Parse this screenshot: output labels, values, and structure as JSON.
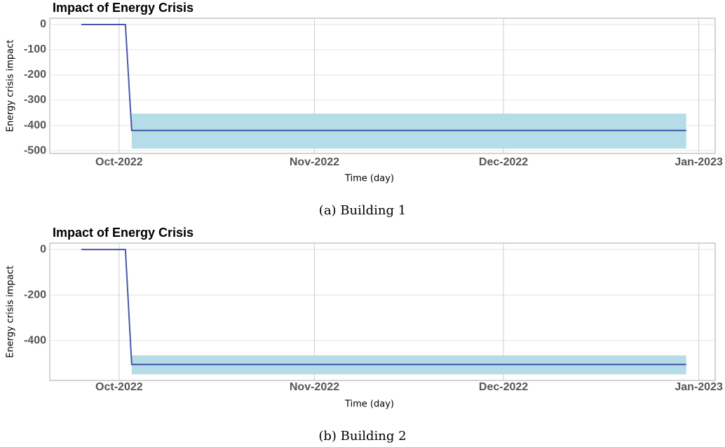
{
  "chart_data": [
    {
      "type": "line",
      "title": "Impact of Energy Crisis",
      "caption": "(a) Building 1",
      "x_label": "Time (day)",
      "y_label": "Energy crisis impact",
      "xlim": [
        263,
        368.6
      ],
      "ylim": [
        -511,
        25
      ],
      "xticks": [
        {
          "value": 274,
          "label": "Oct-2022"
        },
        {
          "value": 305,
          "label": "Nov-2022"
        },
        {
          "value": 335,
          "label": "Dec-2022"
        },
        {
          "value": 366,
          "label": "Jan-2023"
        }
      ],
      "yticks": [
        0,
        -100,
        -200,
        -300,
        -400,
        -500
      ],
      "grid": true,
      "series": [
        {
          "color": "#2b3a9c",
          "x": [
            268,
            275,
            276,
            364
          ],
          "values": [
            0,
            0,
            -420,
            -420
          ]
        }
      ],
      "band": {
        "color": "#b5dde7",
        "x": [
          276,
          364
        ],
        "lower": [
          -492,
          -492
        ],
        "upper": [
          -353,
          -353
        ]
      }
    },
    {
      "type": "line",
      "title": "Impact of Energy Crisis",
      "caption": "(b) Building 2",
      "x_label": "Time (day)",
      "y_label": "Energy crisis impact",
      "xlim": [
        263,
        368.6
      ],
      "ylim": [
        -575,
        28
      ],
      "xticks": [
        {
          "value": 274,
          "label": "Oct-2022"
        },
        {
          "value": 305,
          "label": "Nov-2022"
        },
        {
          "value": 335,
          "label": "Dec-2022"
        },
        {
          "value": 366,
          "label": "Jan-2023"
        }
      ],
      "yticks": [
        0,
        -200,
        -400
      ],
      "grid": true,
      "series": [
        {
          "color": "#2b3a9c",
          "x": [
            268,
            275,
            276,
            364
          ],
          "values": [
            0,
            0,
            -505,
            -505
          ]
        }
      ],
      "band": {
        "color": "#b5dde7",
        "x": [
          276,
          364
        ],
        "lower": [
          -548,
          -548
        ],
        "upper": [
          -465,
          -465
        ]
      }
    }
  ]
}
